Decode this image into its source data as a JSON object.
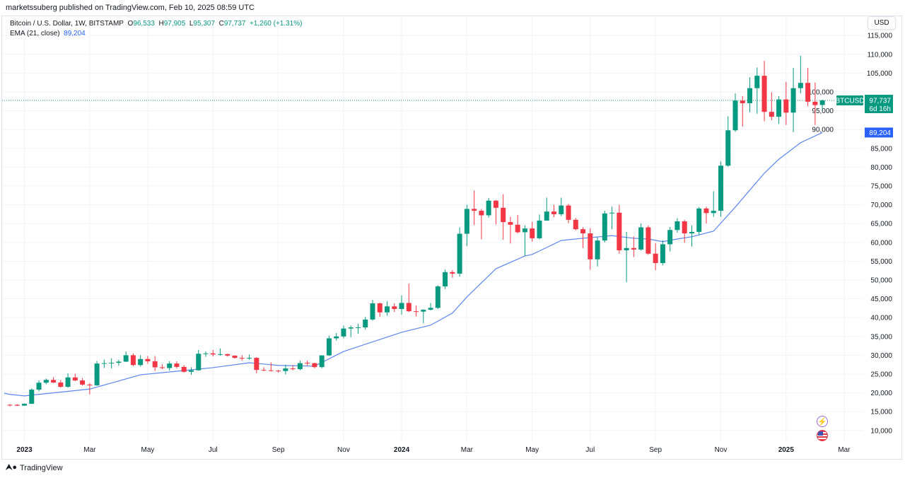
{
  "published": "marketssuberg published on TradingView.com, Feb 10, 2025 08:59 UTC",
  "legend": {
    "symbol": "Bitcoin / U.S. Dollar, 1W, BITSTAMP",
    "open_label": "O",
    "open": "96,533",
    "high_label": "H",
    "high": "97,905",
    "low_label": "L",
    "low": "95,307",
    "close_label": "C",
    "close": "97,737",
    "change": "+1,260 (+1.31%)",
    "ema_label": "EMA (21, close)",
    "ema_value": "89,204"
  },
  "currency_button": "USD",
  "price_badge": {
    "symbol": "BTCUSD",
    "price": "97,737",
    "countdown": "6d 16h"
  },
  "ema_badge": "89,204",
  "footer": {
    "brand": "TradingView"
  },
  "icons": [
    "lightning-icon",
    "us-flag-icon"
  ],
  "colors": {
    "up": "#089981",
    "down": "#f23645",
    "ema": "#5b86f0",
    "ema_badge": "#2962ff",
    "grid": "#f0f3fa"
  },
  "chart_data": {
    "type": "candlestick",
    "interval": "1W",
    "ylim": [
      10000,
      115000
    ],
    "grid": true,
    "y_ticks": [
      "10,000",
      "15,000",
      "20,000",
      "25,000",
      "30,000",
      "35,000",
      "40,000",
      "45,000",
      "50,000",
      "55,000",
      "60,000",
      "65,000",
      "70,000",
      "75,000",
      "80,000",
      "85,000",
      "90,000",
      "95,000",
      "100,000",
      "105,000",
      "110,000",
      "115,000"
    ],
    "x_ticks": [
      {
        "label": "2023",
        "date": "2023-01-02"
      },
      {
        "label": "Mar",
        "date": "2023-03-06"
      },
      {
        "label": "May",
        "date": "2023-05-01"
      },
      {
        "label": "Jul",
        "date": "2023-07-03"
      },
      {
        "label": "Sep",
        "date": "2023-09-04"
      },
      {
        "label": "Nov",
        "date": "2023-11-06"
      },
      {
        "label": "2024",
        "date": "2024-01-01"
      },
      {
        "label": "Mar",
        "date": "2024-03-04"
      },
      {
        "label": "May",
        "date": "2024-05-06"
      },
      {
        "label": "Jul",
        "date": "2024-07-01"
      },
      {
        "label": "Sep",
        "date": "2024-09-02"
      },
      {
        "label": "Nov",
        "date": "2024-11-04"
      },
      {
        "label": "2025",
        "date": "2025-01-06"
      },
      {
        "label": "Mar",
        "date": "2025-03-03"
      }
    ],
    "columns": [
      "week",
      "open",
      "high",
      "low",
      "close"
    ],
    "candles": [
      [
        "2022-12-19",
        16840,
        17000,
        16400,
        16830
      ],
      [
        "2022-12-26",
        16830,
        16950,
        16500,
        16600
      ],
      [
        "2023-01-02",
        16600,
        17200,
        16550,
        17100
      ],
      [
        "2023-01-09",
        17100,
        21200,
        17050,
        20850
      ],
      [
        "2023-01-16",
        20850,
        23300,
        20400,
        22700
      ],
      [
        "2023-01-23",
        22700,
        23800,
        22300,
        23450
      ],
      [
        "2023-01-30",
        23450,
        24200,
        22600,
        22750
      ],
      [
        "2023-02-06",
        22750,
        23400,
        21400,
        21600
      ],
      [
        "2023-02-13",
        21600,
        25200,
        21400,
        24100
      ],
      [
        "2023-02-20",
        24100,
        25100,
        23100,
        23300
      ],
      [
        "2023-02-27",
        23300,
        23900,
        21950,
        22200
      ],
      [
        "2023-03-06",
        22200,
        22600,
        19600,
        22000
      ],
      [
        "2023-03-13",
        22000,
        28500,
        21900,
        27800
      ],
      [
        "2023-03-20",
        27800,
        28800,
        26600,
        27900
      ],
      [
        "2023-03-27",
        27900,
        29200,
        26500,
        28000
      ],
      [
        "2023-04-03",
        28000,
        28800,
        27200,
        28300
      ],
      [
        "2023-04-10",
        28300,
        31000,
        28200,
        30000
      ],
      [
        "2023-04-17",
        30000,
        30500,
        27100,
        27400
      ],
      [
        "2023-04-24",
        27400,
        30000,
        27000,
        29000
      ],
      [
        "2023-05-01",
        29000,
        29800,
        27700,
        28400
      ],
      [
        "2023-05-08",
        28400,
        29800,
        25800,
        26800
      ],
      [
        "2023-05-15",
        26800,
        27600,
        26300,
        26600
      ],
      [
        "2023-05-22",
        26600,
        28400,
        25900,
        27800
      ],
      [
        "2023-05-29",
        27800,
        28400,
        26500,
        26900
      ],
      [
        "2023-06-05",
        26900,
        27400,
        25400,
        25600
      ],
      [
        "2023-06-12",
        25600,
        26800,
        24800,
        26000
      ],
      [
        "2023-06-19",
        26000,
        31400,
        25900,
        30400
      ],
      [
        "2023-06-26",
        30400,
        31000,
        29600,
        30500
      ],
      [
        "2023-07-03",
        30500,
        31400,
        29700,
        30200
      ],
      [
        "2023-07-10",
        30200,
        31800,
        29900,
        30300
      ],
      [
        "2023-07-17",
        30300,
        30400,
        29600,
        29900
      ],
      [
        "2023-07-24",
        29900,
        30000,
        29100,
        29300
      ],
      [
        "2023-07-31",
        29300,
        30000,
        28600,
        29100
      ],
      [
        "2023-08-07",
        29100,
        30200,
        28800,
        29300
      ],
      [
        "2023-08-14",
        29300,
        29500,
        25200,
        26100
      ],
      [
        "2023-08-21",
        26100,
        26800,
        25800,
        26000
      ],
      [
        "2023-08-28",
        26000,
        28100,
        25700,
        25900
      ],
      [
        "2023-09-04",
        25900,
        26100,
        25400,
        25800
      ],
      [
        "2023-09-11",
        25800,
        27500,
        24900,
        26500
      ],
      [
        "2023-09-18",
        26500,
        27400,
        26000,
        26300
      ],
      [
        "2023-09-25",
        26300,
        28600,
        26000,
        27900
      ],
      [
        "2023-10-02",
        28000,
        28600,
        27200,
        27900
      ],
      [
        "2023-10-09",
        27900,
        28000,
        26550,
        26850
      ],
      [
        "2023-10-16",
        26850,
        30000,
        26550,
        29950
      ],
      [
        "2023-10-23",
        29950,
        35200,
        29800,
        34500
      ],
      [
        "2023-10-30",
        34500,
        35900,
        33900,
        35000
      ],
      [
        "2023-11-06",
        35000,
        37900,
        34500,
        37100
      ],
      [
        "2023-11-13",
        37100,
        37900,
        34800,
        37400
      ],
      [
        "2023-11-20",
        37400,
        38400,
        35700,
        37400
      ],
      [
        "2023-11-27",
        37400,
        40200,
        36800,
        39500
      ],
      [
        "2023-12-04",
        39500,
        44700,
        39200,
        43800
      ],
      [
        "2023-12-11",
        43800,
        44000,
        40200,
        41400
      ],
      [
        "2023-12-18",
        41400,
        44300,
        40500,
        43000
      ],
      [
        "2023-12-25",
        43000,
        43800,
        41500,
        42300
      ],
      [
        "2024-01-01",
        42300,
        45900,
        40800,
        43900
      ],
      [
        "2024-01-08",
        43900,
        49000,
        41500,
        41700
      ],
      [
        "2024-01-15",
        41700,
        43200,
        40300,
        41600
      ],
      [
        "2024-01-22",
        41600,
        42200,
        38500,
        42100
      ],
      [
        "2024-01-29",
        42100,
        43900,
        41900,
        42600
      ],
      [
        "2024-02-05",
        42600,
        48600,
        42300,
        48300
      ],
      [
        "2024-02-12",
        48300,
        52800,
        47600,
        52100
      ],
      [
        "2024-02-19",
        52100,
        52600,
        50600,
        51700
      ],
      [
        "2024-02-26",
        51700,
        64000,
        50900,
        62300
      ],
      [
        "2024-03-04",
        62300,
        70000,
        59000,
        68900
      ],
      [
        "2024-03-11",
        68900,
        73800,
        64600,
        68400
      ],
      [
        "2024-03-18",
        68400,
        68900,
        60800,
        67200
      ],
      [
        "2024-03-25",
        67200,
        71800,
        66600,
        71100
      ],
      [
        "2024-04-01",
        71100,
        71300,
        64800,
        69200
      ],
      [
        "2024-04-08",
        69200,
        72800,
        60700,
        65400
      ],
      [
        "2024-04-15",
        65400,
        66800,
        59700,
        64700
      ],
      [
        "2024-04-22",
        64700,
        67300,
        62400,
        62700
      ],
      [
        "2024-04-29",
        62700,
        64500,
        56500,
        63700
      ],
      [
        "2024-05-06",
        63700,
        65500,
        60200,
        61100
      ],
      [
        "2024-05-13",
        61100,
        67400,
        60800,
        65800
      ],
      [
        "2024-05-20",
        65800,
        71900,
        65800,
        68200
      ],
      [
        "2024-05-27",
        68200,
        70000,
        66700,
        67500
      ],
      [
        "2024-06-03",
        67500,
        71900,
        67000,
        69800
      ],
      [
        "2024-06-10",
        69800,
        70200,
        65100,
        66000
      ],
      [
        "2024-06-17",
        66000,
        66500,
        63200,
        63500
      ],
      [
        "2024-06-24",
        63500,
        64000,
        58500,
        62400
      ],
      [
        "2024-07-01",
        62400,
        63800,
        52700,
        55500
      ],
      [
        "2024-07-08",
        55500,
        61400,
        53600,
        60500
      ],
      [
        "2024-07-15",
        60500,
        68400,
        60000,
        67700
      ],
      [
        "2024-07-22",
        67700,
        69500,
        63500,
        67900
      ],
      [
        "2024-07-29",
        67900,
        70000,
        57000,
        57900
      ],
      [
        "2024-08-05",
        57900,
        62800,
        49400,
        58500
      ],
      [
        "2024-08-12",
        58500,
        61600,
        56100,
        58100
      ],
      [
        "2024-08-19",
        58100,
        65000,
        57800,
        64000
      ],
      [
        "2024-08-26",
        64000,
        64500,
        56700,
        57000
      ],
      [
        "2024-09-02",
        57000,
        59800,
        52600,
        54500
      ],
      [
        "2024-09-09",
        54500,
        60600,
        53900,
        59500
      ],
      [
        "2024-09-16",
        59500,
        64100,
        57600,
        63300
      ],
      [
        "2024-09-23",
        63300,
        66400,
        62600,
        65600
      ],
      [
        "2024-09-30",
        65600,
        66000,
        59900,
        62400
      ],
      [
        "2024-10-07",
        62400,
        64500,
        58900,
        62800
      ],
      [
        "2024-10-14",
        62800,
        69400,
        62000,
        69000
      ],
      [
        "2024-10-21",
        69000,
        69500,
        65000,
        67800
      ],
      [
        "2024-10-28",
        67800,
        73600,
        66800,
        68400
      ],
      [
        "2024-11-04",
        68400,
        81500,
        66800,
        80400
      ],
      [
        "2024-11-11",
        80400,
        93500,
        80100,
        89800
      ],
      [
        "2024-11-18",
        89800,
        99600,
        89400,
        97700
      ],
      [
        "2024-11-25",
        97700,
        98900,
        90800,
        97000
      ],
      [
        "2024-12-02",
        97000,
        103900,
        94600,
        101000
      ],
      [
        "2024-12-09",
        101000,
        106500,
        94200,
        104300
      ],
      [
        "2024-12-16",
        104300,
        108300,
        92200,
        94700
      ],
      [
        "2024-12-23",
        94700,
        99900,
        92500,
        93400
      ],
      [
        "2024-12-30",
        93400,
        98900,
        91500,
        98000
      ],
      [
        "2025-01-06",
        98000,
        102700,
        91200,
        94500
      ],
      [
        "2025-01-13",
        94500,
        106400,
        89300,
        101000
      ],
      [
        "2025-01-20",
        101000,
        109600,
        99600,
        102400
      ],
      [
        "2025-01-27",
        102400,
        106400,
        96200,
        97400
      ],
      [
        "2025-02-03",
        97400,
        102500,
        91200,
        96500
      ],
      [
        "2025-02-10",
        96533,
        97905,
        95307,
        97737
      ]
    ],
    "ema": {
      "name": "EMA (21, close)",
      "points": [
        [
          "2022-12-12",
          19900
        ],
        [
          "2022-12-19",
          19600
        ],
        [
          "2023-01-02",
          19200
        ],
        [
          "2023-03-06",
          21000
        ],
        [
          "2023-04-24",
          24800
        ],
        [
          "2023-07-03",
          26700
        ],
        [
          "2023-08-07",
          28000
        ],
        [
          "2023-09-04",
          27300
        ],
        [
          "2023-10-09",
          27100
        ],
        [
          "2023-11-06",
          31000
        ],
        [
          "2024-01-01",
          36100
        ],
        [
          "2024-01-29",
          38000
        ],
        [
          "2024-02-19",
          41200
        ],
        [
          "2024-03-04",
          45500
        ],
        [
          "2024-04-01",
          53000
        ],
        [
          "2024-04-29",
          56400
        ],
        [
          "2024-05-06",
          56800
        ],
        [
          "2024-06-03",
          60500
        ],
        [
          "2024-06-24",
          61100
        ],
        [
          "2024-07-22",
          61800
        ],
        [
          "2024-08-12",
          61100
        ],
        [
          "2024-08-26",
          60900
        ],
        [
          "2024-09-09",
          60200
        ],
        [
          "2024-09-23",
          60900
        ],
        [
          "2024-10-07",
          61500
        ],
        [
          "2024-10-28",
          63000
        ],
        [
          "2024-11-18",
          69400
        ],
        [
          "2024-12-16",
          78400
        ],
        [
          "2024-12-30",
          82100
        ],
        [
          "2025-01-20",
          86500
        ],
        [
          "2025-02-10",
          89204
        ]
      ]
    }
  }
}
